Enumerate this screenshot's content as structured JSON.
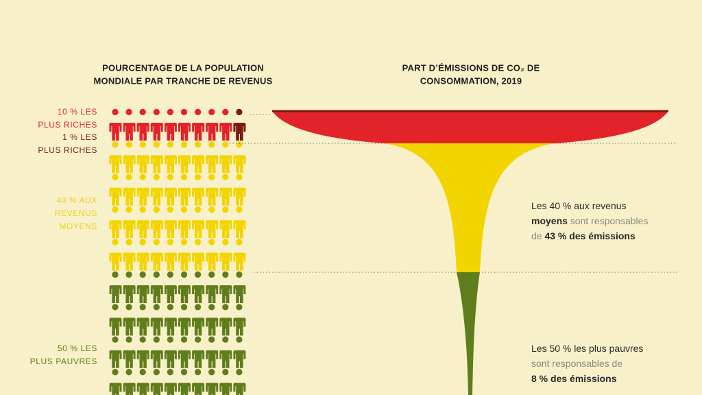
{
  "left_header": {
    "lines": [
      "POURCENTAGE DE LA POPULATION",
      "MONDIALE PAR TRANCHE DE REVENUS"
    ]
  },
  "right_header": {
    "lines": [
      "PART D’ÉMISSIONS DE CO₂ DE",
      "CONSOMMATION, 2019"
    ]
  },
  "groups": [
    {
      "lines": [
        "10 % LES",
        "PLUS RICHES"
      ]
    },
    {
      "lines": [
        "1 % LES",
        "PLUS RICHES"
      ]
    },
    {
      "lines": [
        "40 % AUX",
        "REVENUS",
        "MOYENS"
      ]
    },
    {
      "lines": [
        "50 % LES",
        "PLUS PAUVRES"
      ]
    }
  ],
  "notes": [
    {
      "lines": [
        [
          "Les 40 % aux revenus"
        ],
        [
          "moyens",
          " sont responsables"
        ],
        [
          "de ",
          "43 % des émissions"
        ]
      ]
    },
    {
      "lines": [
        [
          "Les 50 % les plus pauvres"
        ],
        [
          "sont responsables de"
        ],
        [
          "8 % des émissions"
        ]
      ]
    }
  ]
}
